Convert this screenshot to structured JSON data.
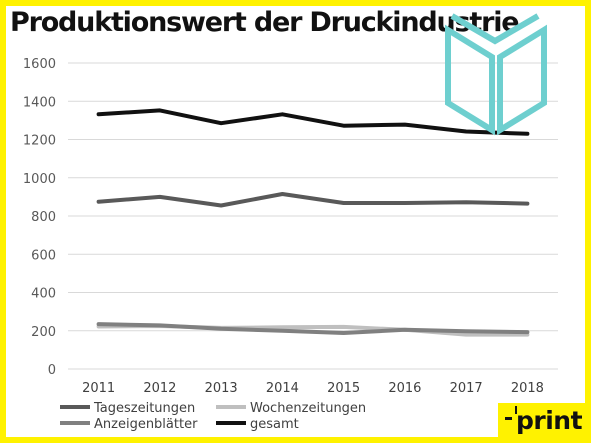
{
  "title": "Produktionswert der Druckindustrie",
  "logo": {
    "text": "print",
    "icon": "open-book-icon",
    "color": "#6ecfcf"
  },
  "chart_data": {
    "type": "line",
    "title": "Produktionswert der Druckindustrie",
    "xlabel": "",
    "ylabel": "",
    "categories": [
      "2011",
      "2012",
      "2013",
      "2014",
      "2015",
      "2016",
      "2017",
      "2018"
    ],
    "ylim": [
      0,
      1600
    ],
    "yticks": [
      0,
      200,
      400,
      600,
      800,
      1000,
      1200,
      1400,
      1600
    ],
    "grid": true,
    "legend": "bottom",
    "series": [
      {
        "name": "Tageszeitungen",
        "color": "#595959",
        "values": [
          875,
          900,
          855,
          915,
          868,
          868,
          872,
          865
        ]
      },
      {
        "name": "Wochenzeitungen",
        "color": "#bfbfbf",
        "values": [
          222,
          225,
          215,
          218,
          220,
          205,
          180,
          180
        ]
      },
      {
        "name": "Anzeigenblätter",
        "color": "#808080",
        "values": [
          235,
          228,
          210,
          200,
          188,
          205,
          197,
          193
        ]
      },
      {
        "name": "gesamt",
        "color": "#111111",
        "values": [
          1332,
          1352,
          1285,
          1332,
          1272,
          1278,
          1242,
          1230
        ]
      }
    ]
  }
}
